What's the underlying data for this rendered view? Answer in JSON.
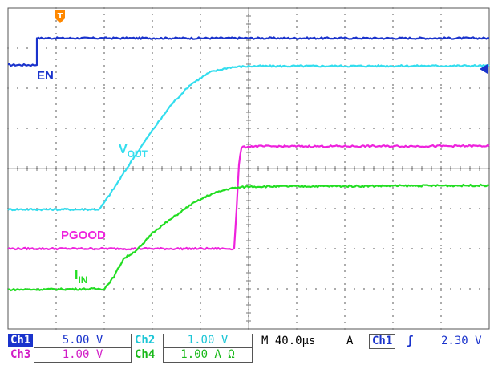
{
  "colors": {
    "ch1": "#1a33cc",
    "ch2": "#33ddee",
    "ch3": "#ee22dd",
    "ch4": "#22dd22",
    "trigger_marker": "#ff8800",
    "grid": "#555555"
  },
  "trigger_marker": {
    "letter": "T",
    "icon": "trigger-position-marker"
  },
  "labels": {
    "en": "EN",
    "vout_main": "V",
    "vout_sub": "OUT",
    "pgood": "PGOOD",
    "iin_main": "I",
    "iin_sub": "IN"
  },
  "status_bar": {
    "ch1": {
      "name": "Ch1",
      "scale": "5.00 V"
    },
    "ch2": {
      "name": "Ch2",
      "scale": "1.00 V"
    },
    "ch3": {
      "name": "Ch3",
      "scale": "1.00 V"
    },
    "ch4": {
      "name": "Ch4",
      "scale": "1.00 A Ω"
    },
    "timebase": "M 40.0µs",
    "trigger_mode": "A",
    "trigger_source": "Ch1",
    "trigger_slope": "ʃ",
    "trigger_level": "2.30 V"
  },
  "chart_data": {
    "type": "line",
    "x_unit": "µs",
    "x_per_div": 40,
    "xlim": [
      0,
      400
    ],
    "ylim": [
      -4,
      4
    ],
    "grid": true,
    "series": [
      {
        "name": "EN",
        "channel": "Ch1",
        "points": [
          [
            0,
            2.58
          ],
          [
            24,
            2.58
          ],
          [
            24,
            3.25
          ],
          [
            400,
            3.25
          ]
        ]
      },
      {
        "name": "VOUT",
        "channel": "Ch2",
        "points": [
          [
            0,
            -1.02
          ],
          [
            76,
            -1.02
          ],
          [
            88,
            -0.5
          ],
          [
            104,
            0.25
          ],
          [
            120,
            0.95
          ],
          [
            136,
            1.6
          ],
          [
            152,
            2.1
          ],
          [
            168,
            2.4
          ],
          [
            184,
            2.52
          ],
          [
            200,
            2.55
          ],
          [
            400,
            2.56
          ]
        ]
      },
      {
        "name": "PGOOD",
        "channel": "Ch3",
        "points": [
          [
            0,
            -2.0
          ],
          [
            188,
            -2.0
          ],
          [
            190,
            -1.0
          ],
          [
            192,
            0.1
          ],
          [
            194,
            0.52
          ],
          [
            200,
            0.55
          ],
          [
            400,
            0.56
          ]
        ]
      },
      {
        "name": "IIN",
        "channel": "Ch4",
        "points": [
          [
            0,
            -3.02
          ],
          [
            80,
            -3.0
          ],
          [
            88,
            -2.7
          ],
          [
            96,
            -2.25
          ],
          [
            104,
            -2.1
          ],
          [
            112,
            -1.9
          ],
          [
            120,
            -1.6
          ],
          [
            136,
            -1.25
          ],
          [
            152,
            -0.9
          ],
          [
            168,
            -0.65
          ],
          [
            184,
            -0.5
          ],
          [
            200,
            -0.45
          ],
          [
            400,
            -0.42
          ]
        ]
      }
    ]
  }
}
